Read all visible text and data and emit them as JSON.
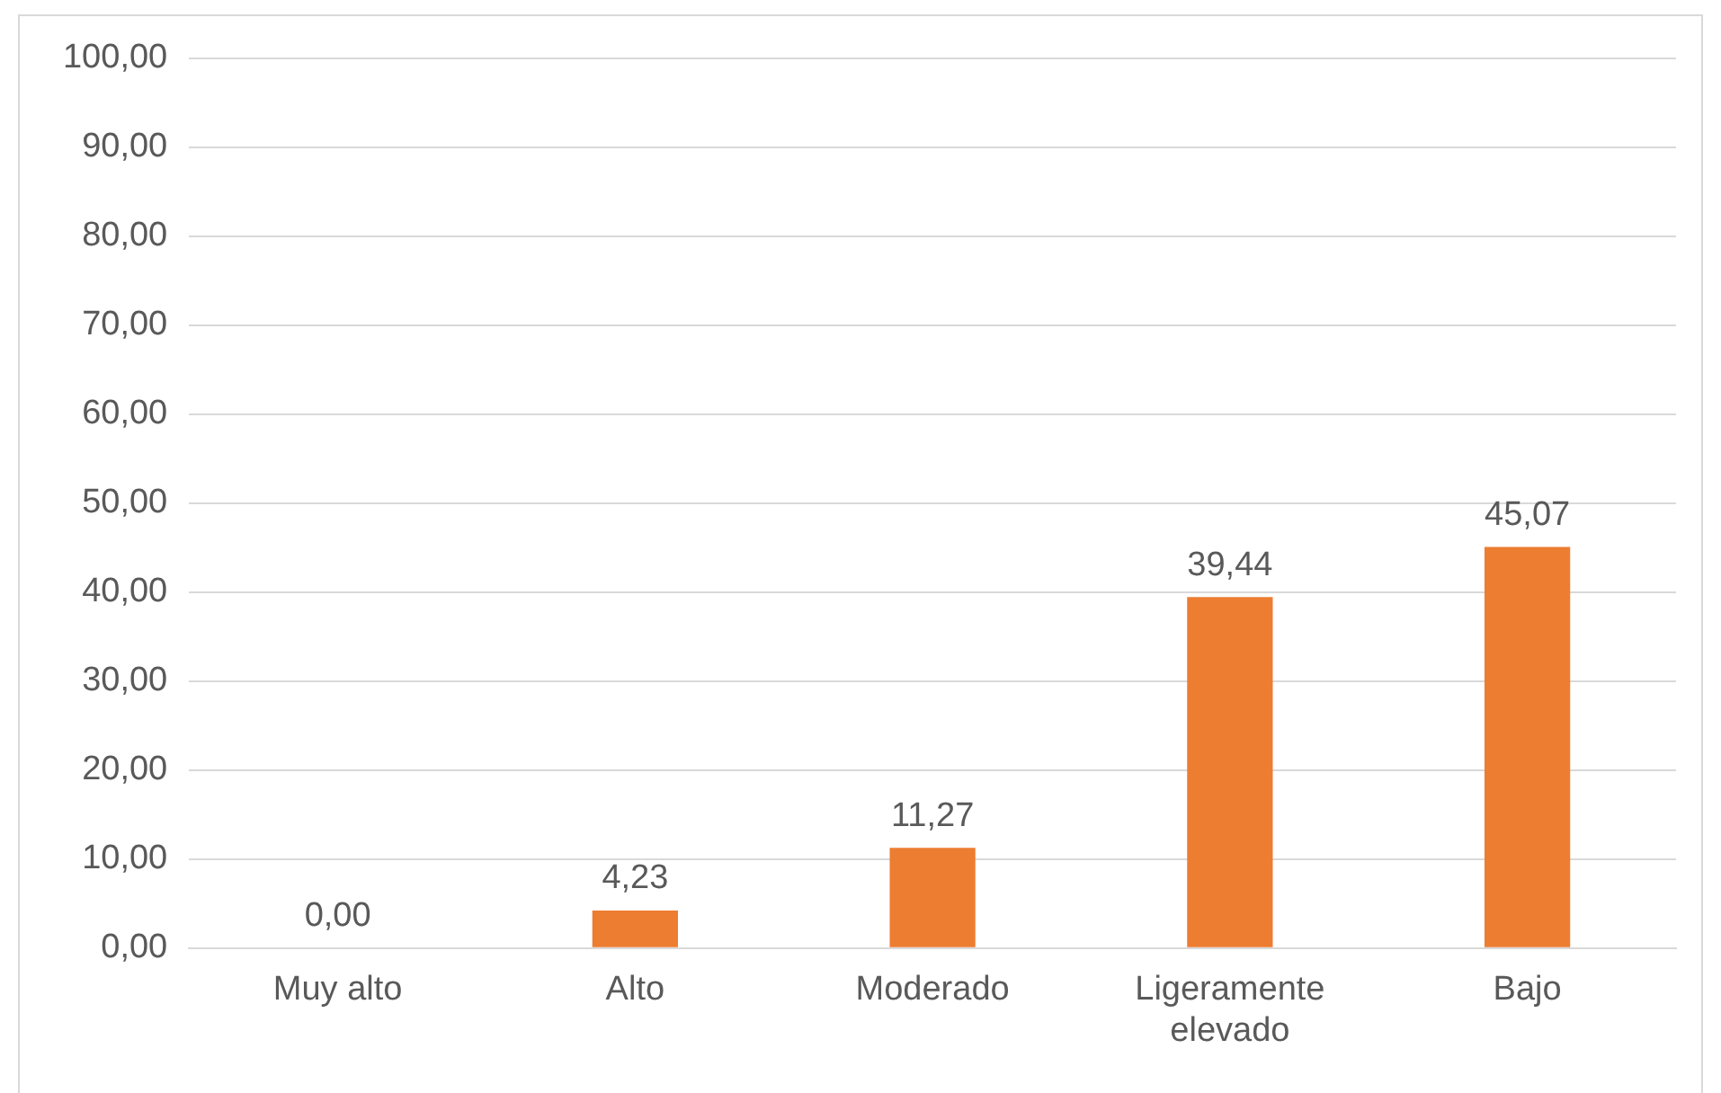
{
  "chart_data": {
    "type": "bar",
    "categories": [
      "Muy alto",
      "Alto",
      "Moderado",
      "Ligeramente elevado",
      "Bajo"
    ],
    "values": [
      0,
      4.23,
      11.27,
      39.44,
      45.07
    ],
    "value_labels": [
      "0,00",
      "4,23",
      "11,27",
      "39,44",
      "45,07"
    ],
    "color": "#ed7d31",
    "ylim": [
      0,
      100
    ],
    "yticks": [
      {
        "value": 0,
        "label": "0,00"
      },
      {
        "value": 10,
        "label": "10,00"
      },
      {
        "value": 20,
        "label": "20,00"
      },
      {
        "value": 30,
        "label": "30,00"
      },
      {
        "value": 40,
        "label": "40,00"
      },
      {
        "value": 50,
        "label": "50,00"
      },
      {
        "value": 60,
        "label": "60,00"
      },
      {
        "value": 70,
        "label": "70,00"
      },
      {
        "value": 80,
        "label": "80,00"
      },
      {
        "value": 90,
        "label": "90,00"
      },
      {
        "value": 100,
        "label": "100,00"
      }
    ],
    "grid": "y",
    "legend": false
  }
}
